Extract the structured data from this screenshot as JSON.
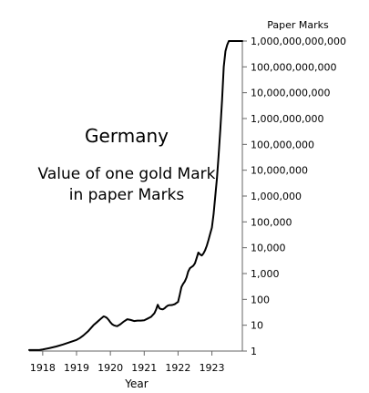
{
  "chart_data": {
    "type": "line",
    "title": "Germany",
    "subtitle_lines": [
      "Value of one gold Mark",
      "in paper Marks"
    ],
    "xlabel": "Year",
    "ylabel": "Paper Marks",
    "yscale": "log",
    "ylim": [
      1,
      1000000000000
    ],
    "xlim": [
      1917.6,
      1923.9
    ],
    "x_ticks": [
      1918,
      1919,
      1920,
      1921,
      1922,
      1923
    ],
    "x_tick_labels": [
      "1918",
      "1919",
      "1920",
      "1921",
      "1922",
      "1923"
    ],
    "y_ticks": [
      1,
      10,
      100,
      1000,
      10000,
      100000,
      1000000,
      10000000,
      100000000,
      1000000000,
      10000000000,
      100000000000,
      1000000000000
    ],
    "y_tick_labels": [
      "1",
      "10",
      "100",
      "1,000",
      "10,000",
      "100,000",
      "1,000,000",
      "10,000,000",
      "100,000,000",
      "1,000,000,000",
      "10,000,000,000",
      "100,000,000,000",
      "1,000,000,000,000"
    ],
    "grid": false,
    "series": [
      {
        "color": "#000000",
        "x": [
          1917.6,
          1917.9,
          1918.0,
          1918.2,
          1918.4,
          1918.6,
          1918.8,
          1919.0,
          1919.1,
          1919.2,
          1919.35,
          1919.5,
          1919.6,
          1919.7,
          1919.8,
          1919.85,
          1919.9,
          1919.95,
          1920.0,
          1920.05,
          1920.1,
          1920.15,
          1920.2,
          1920.25,
          1920.3,
          1920.4,
          1920.5,
          1920.6,
          1920.7,
          1920.8,
          1920.9,
          1921.0,
          1921.1,
          1921.2,
          1921.3,
          1921.35,
          1921.4,
          1921.45,
          1921.5,
          1921.55,
          1921.6,
          1921.65,
          1921.7,
          1921.75,
          1921.8,
          1921.85,
          1921.9,
          1922.0,
          1922.05,
          1922.1,
          1922.15,
          1922.2,
          1922.25,
          1922.3,
          1922.35,
          1922.4,
          1922.45,
          1922.5,
          1922.55,
          1922.6,
          1922.65,
          1922.7,
          1922.75,
          1922.8,
          1922.85,
          1922.9,
          1922.95,
          1923.0,
          1923.05,
          1923.1,
          1923.15,
          1923.2,
          1923.25,
          1923.3,
          1923.35,
          1923.4,
          1923.45,
          1923.5,
          1923.55,
          1923.6,
          1923.65,
          1923.7,
          1923.75,
          1923.8,
          1923.85,
          1923.9
        ],
        "y": [
          1.1,
          1.1,
          1.15,
          1.3,
          1.5,
          1.8,
          2.2,
          2.7,
          3.2,
          4.0,
          6.0,
          10.0,
          13.0,
          17.0,
          22.0,
          21.0,
          19.0,
          16.0,
          13.0,
          11.0,
          10.0,
          9.5,
          9.2,
          10.0,
          11.0,
          14.0,
          17.0,
          16.0,
          14.5,
          15.0,
          15.0,
          15.5,
          18.0,
          21.0,
          29.0,
          40.0,
          62.0,
          45.0,
          42.0,
          41.0,
          45.0,
          52.0,
          58.0,
          60.0,
          60.0,
          62.0,
          65.0,
          80.0,
          150.0,
          300.0,
          400.0,
          500.0,
          700.0,
          1200.0,
          1600.0,
          1800.0,
          2000.0,
          2500.0,
          4000.0,
          6500.0,
          5500.0,
          5000.0,
          6000.0,
          8000.0,
          12000.0,
          20000.0,
          35000.0,
          60000.0,
          200000.0,
          1000000.0,
          5000000.0,
          40000000.0,
          400000000.0,
          5000000000.0,
          100000000000.0,
          400000000000.0,
          700000000000.0,
          1000000000000.0,
          1000000000000.0,
          1000000000000.0,
          1000000000000.0,
          1000000000000.0,
          1000000000000.0,
          1000000000000.0,
          1000000000000.0,
          1000000000000.0
        ]
      }
    ]
  }
}
